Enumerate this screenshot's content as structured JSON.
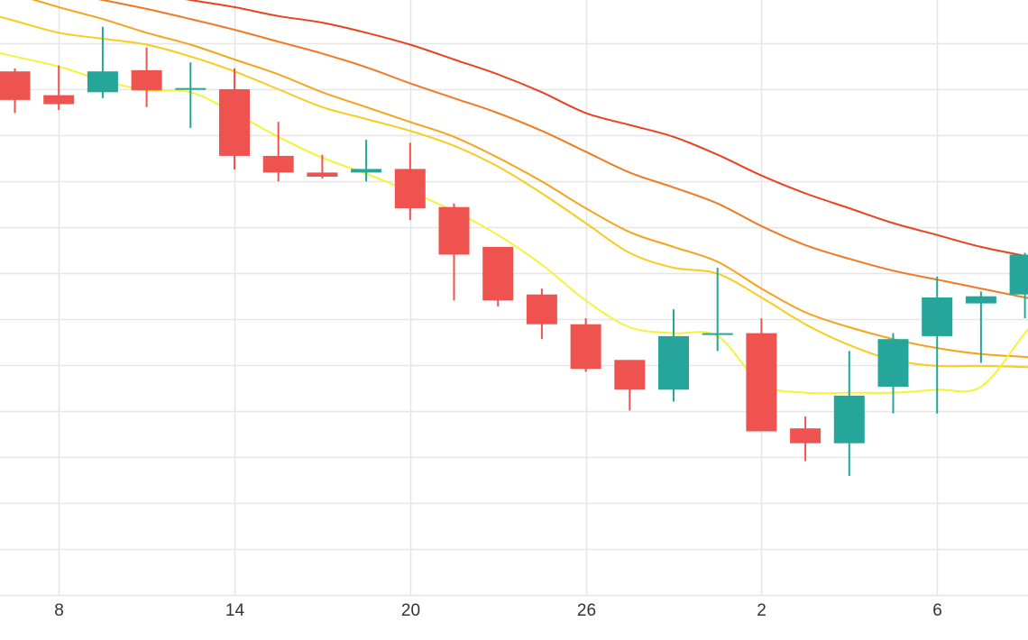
{
  "chart_data": {
    "type": "candlestick",
    "x_ticks": [
      {
        "label": "8",
        "index": 1
      },
      {
        "label": "14",
        "index": 5
      },
      {
        "label": "20",
        "index": 9
      },
      {
        "label": "26",
        "index": 13
      },
      {
        "label": "2",
        "index": 17
      },
      {
        "label": "6",
        "index": 21
      }
    ],
    "y_range": [
      0,
      100
    ],
    "grid": true,
    "colors": {
      "up": "#26a69a",
      "down": "#ef5350",
      "grid": "#e6e6e6"
    },
    "candles": [
      {
        "o": 88.0,
        "h": 88.5,
        "l": 81.0,
        "c": 83.2
      },
      {
        "o": 84.0,
        "h": 89.0,
        "l": 81.5,
        "c": 82.5
      },
      {
        "o": 84.5,
        "h": 95.5,
        "l": 83.5,
        "c": 88.0
      },
      {
        "o": 88.2,
        "h": 92.0,
        "l": 82.0,
        "c": 84.8
      },
      {
        "o": 85.0,
        "h": 89.5,
        "l": 78.5,
        "c": 85.2
      },
      {
        "o": 85.0,
        "h": 88.5,
        "l": 71.5,
        "c": 73.8
      },
      {
        "o": 73.8,
        "h": 79.5,
        "l": 69.5,
        "c": 71.0
      },
      {
        "o": 71.0,
        "h": 74.0,
        "l": 70.0,
        "c": 70.3
      },
      {
        "o": 71.0,
        "h": 76.5,
        "l": 69.5,
        "c": 71.6
      },
      {
        "o": 71.6,
        "h": 76.0,
        "l": 63.0,
        "c": 65.0
      },
      {
        "o": 65.2,
        "h": 65.8,
        "l": 49.5,
        "c": 57.2
      },
      {
        "o": 58.5,
        "h": 58.5,
        "l": 48.5,
        "c": 49.5
      },
      {
        "o": 50.5,
        "h": 51.5,
        "l": 43.0,
        "c": 45.5
      },
      {
        "o": 45.5,
        "h": 46.5,
        "l": 37.5,
        "c": 38.0
      },
      {
        "o": 39.5,
        "h": 39.5,
        "l": 31.0,
        "c": 34.5
      },
      {
        "o": 34.5,
        "h": 48.0,
        "l": 32.5,
        "c": 43.5
      },
      {
        "o": 44.0,
        "h": 55.0,
        "l": 41.0,
        "c": 44.0
      },
      {
        "o": 44.0,
        "h": 46.5,
        "l": 27.5,
        "c": 27.5
      },
      {
        "o": 28.0,
        "h": 30.0,
        "l": 22.5,
        "c": 25.5
      },
      {
        "o": 25.5,
        "h": 41.0,
        "l": 20.0,
        "c": 33.5
      },
      {
        "o": 35.0,
        "h": 44.0,
        "l": 30.5,
        "c": 43.0
      },
      {
        "o": 43.5,
        "h": 53.5,
        "l": 30.5,
        "c": 50.0
      },
      {
        "o": 49.0,
        "h": 51.0,
        "l": 39.0,
        "c": 50.2
      },
      {
        "o": 50.5,
        "h": 57.5,
        "l": 46.5,
        "c": 57.2
      }
    ],
    "moving_averages": [
      {
        "color": "#e8431e",
        "values": [
          105.0,
          103.8,
          102.5,
          101.3,
          100.0,
          98.8,
          97.3,
          96.2,
          94.5,
          92.5,
          90.0,
          87.5,
          84.5,
          81.0,
          79.0,
          77.0,
          74.0,
          70.5,
          67.5,
          65.0,
          62.5,
          60.5,
          58.5,
          57.0
        ]
      },
      {
        "color": "#f07a22",
        "values": [
          103.0,
          101.3,
          100.0,
          98.5,
          96.8,
          95.0,
          93.0,
          91.0,
          88.7,
          86.0,
          83.5,
          81.0,
          78.0,
          74.5,
          71.0,
          68.5,
          65.8,
          62.0,
          58.8,
          56.5,
          54.5,
          53.0,
          51.5,
          50.0
        ]
      },
      {
        "color": "#f7a21b",
        "values": [
          101.0,
          98.8,
          96.8,
          94.5,
          92.5,
          90.0,
          87.5,
          84.5,
          82.0,
          79.5,
          77.0,
          73.5,
          69.5,
          65.0,
          61.0,
          58.5,
          56.0,
          51.5,
          47.5,
          45.0,
          43.0,
          41.5,
          40.5,
          40.0
        ]
      },
      {
        "color": "#f6cc1d",
        "values": [
          96.5,
          94.5,
          93.5,
          92.5,
          90.5,
          88.0,
          85.0,
          82.0,
          80.0,
          78.0,
          75.5,
          72.0,
          67.5,
          62.5,
          57.5,
          55.0,
          54.0,
          50.0,
          45.5,
          42.0,
          39.5,
          38.5,
          38.5,
          38.3
        ]
      },
      {
        "color": "#f5f23a",
        "values": [
          90.5,
          88.8,
          86.5,
          84.8,
          84.5,
          81.0,
          77.0,
          73.5,
          70.8,
          67.8,
          64.5,
          60.5,
          55.5,
          49.5,
          45.0,
          44.0,
          43.5,
          35.5,
          34.0,
          34.0,
          34.0,
          34.5,
          35.0,
          44.0
        ]
      }
    ]
  }
}
